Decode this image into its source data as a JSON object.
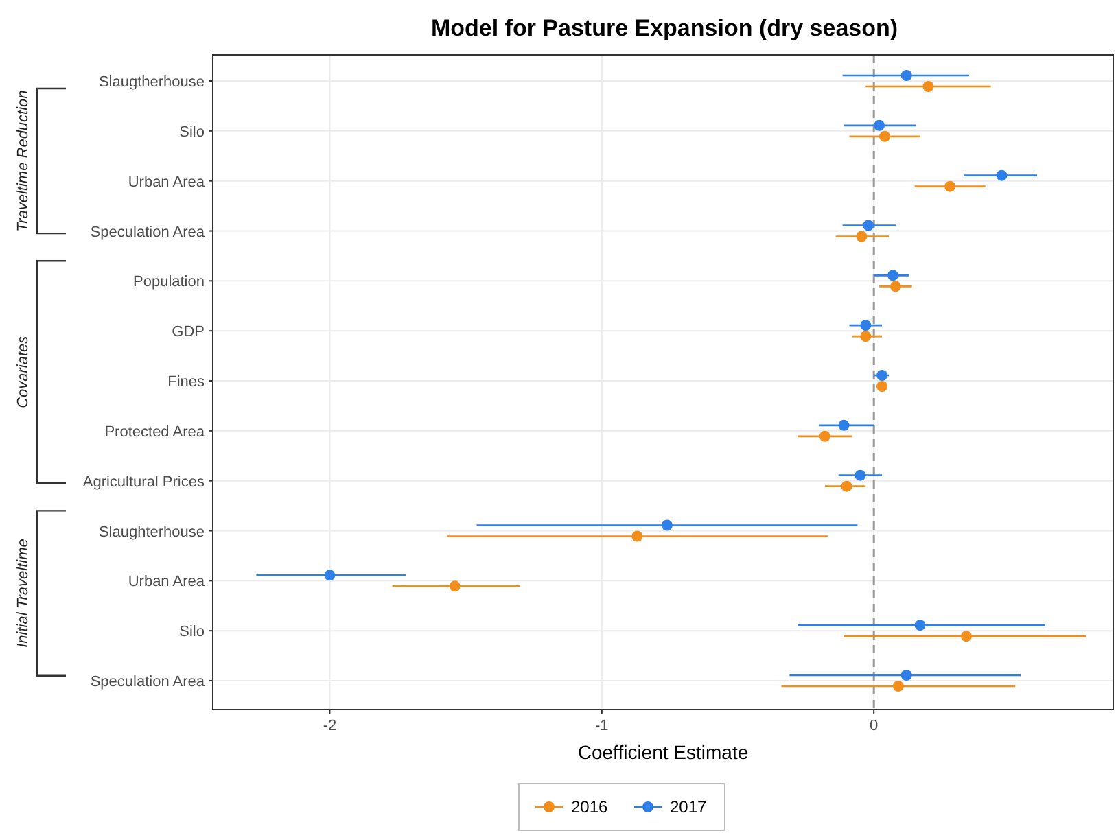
{
  "chart_data": {
    "type": "scatter",
    "orientation": "horizontal",
    "title": "Model for Pasture Expansion (dry season)",
    "xlabel": "Coefficient Estimate",
    "categories": [
      "Slaugtherhouse",
      "Silo",
      "Urban Area",
      "Speculation Area",
      "Population",
      "GDP",
      "Fines",
      "Protected Area",
      "Agricultural Prices",
      "Slaughterhouse",
      "Urban Area",
      "Silo",
      "Speculation Area"
    ],
    "series": [
      {
        "name": "2016",
        "color": "#f28e1c",
        "values": [
          0.2,
          0.04,
          0.28,
          -0.045,
          0.08,
          -0.03,
          0.03,
          -0.18,
          -0.1,
          -0.87,
          -1.54,
          0.34,
          0.09
        ],
        "errors": [
          [
            -0.03,
            0.43
          ],
          [
            -0.09,
            0.17
          ],
          [
            0.15,
            0.41
          ],
          [
            -0.14,
            0.055
          ],
          [
            0.02,
            0.14
          ],
          [
            -0.08,
            0.03
          ],
          [
            0.01,
            0.05
          ],
          [
            -0.28,
            -0.08
          ],
          [
            -0.18,
            -0.03
          ],
          [
            -1.57,
            -0.17
          ],
          [
            -1.77,
            -1.3
          ],
          [
            -0.11,
            0.78
          ],
          [
            -0.34,
            0.52
          ]
        ]
      },
      {
        "name": "2017",
        "color": "#2f7fe8",
        "values": [
          0.12,
          0.02,
          0.47,
          -0.02,
          0.07,
          -0.03,
          0.03,
          -0.11,
          -0.05,
          -0.76,
          -2.0,
          0.17,
          0.12
        ],
        "errors": [
          [
            -0.115,
            0.35
          ],
          [
            -0.11,
            0.155
          ],
          [
            0.33,
            0.6
          ],
          [
            -0.115,
            0.08
          ],
          [
            0,
            0.13
          ],
          [
            -0.09,
            0.03
          ],
          [
            0,
            0.055
          ],
          [
            -0.2,
            0
          ],
          [
            -0.13,
            0.03
          ],
          [
            -1.46,
            -0.06
          ],
          [
            -2.27,
            -1.72
          ],
          [
            -0.28,
            0.63
          ],
          [
            -0.31,
            0.54
          ]
        ]
      }
    ],
    "annotations": [
      "Traveltime Reduction",
      "Covariates",
      "Initial Traveltime"
    ],
    "xlim": [
      -2.43,
      0.88
    ],
    "xticks": [
      -2,
      -1,
      0
    ],
    "ref_lines": [
      {
        "axis": "x",
        "value": 0,
        "color": "#9a9a9a",
        "line_style": "dashed"
      }
    ],
    "grid": true,
    "legend": "bottom",
    "marker": "circle"
  }
}
